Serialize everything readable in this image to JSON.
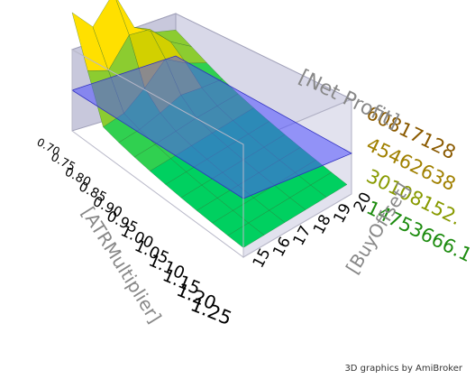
{
  "chart_data": {
    "type": "surface3d",
    "title": "",
    "zlabel": "[Net Profit]",
    "xlabel": "[ATRMultiplier]",
    "ylabel": "[BuyOffset]",
    "x_ticks": [
      "0.70",
      "0.75",
      "0.80",
      "0.85",
      "0.90",
      "0.95",
      "1.00",
      "1.05",
      "1.10",
      "1.15",
      "1.20",
      "1.25"
    ],
    "y_ticks": [
      "15",
      "16",
      "17",
      "18",
      "19",
      "20"
    ],
    "z_ticks": [
      "60817128",
      "45462638",
      "30108152.",
      "14753666.1"
    ],
    "grid": "box",
    "surface_colors": [
      "#00d060",
      "#5ab84a",
      "#c8c000",
      "#ffe000"
    ],
    "plane_color": "#5050ff"
  },
  "credit": "3D graphics by AmiBroker"
}
